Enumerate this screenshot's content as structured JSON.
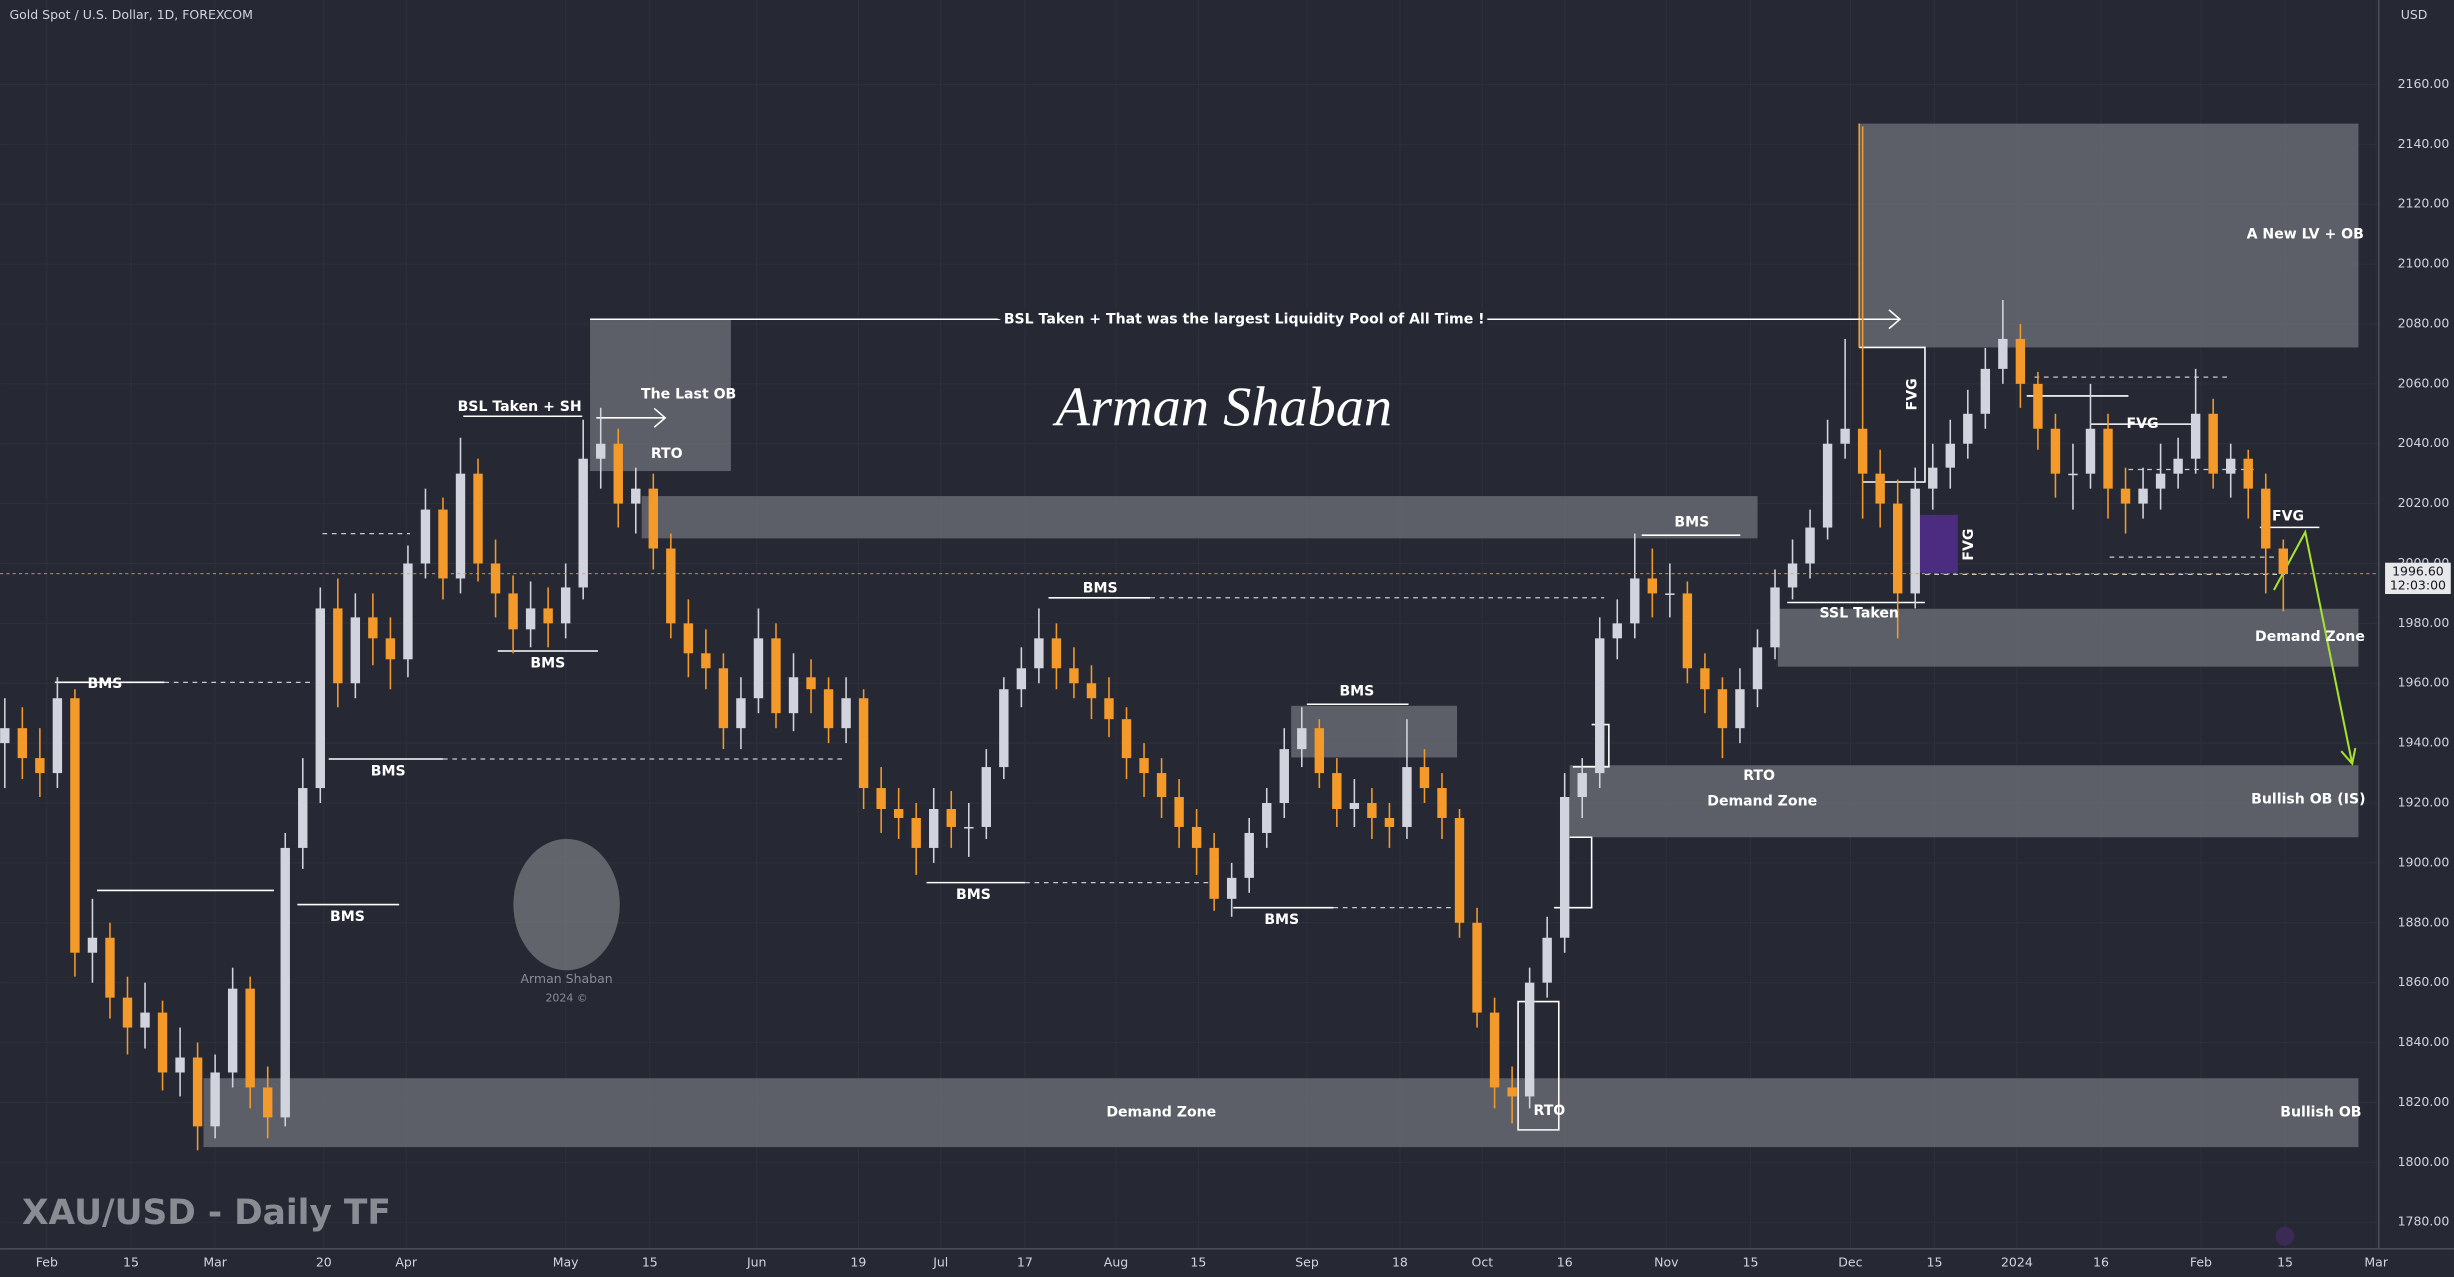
{
  "chart_data": {
    "type": "candlestick",
    "title": "Gold Spot / U.S. Dollar, 1D, FOREXCOM",
    "currency": "USD",
    "watermark": "XAU/USD - Daily TF",
    "signature": "Arman Shaban",
    "logo_name": "Arman Shaban",
    "logo_year": "2024 ©",
    "up_color": "#d1d4dc",
    "down_color": "#f39a2b",
    "xlim": [
      -0.27,
      135.45
    ],
    "xticks": [
      {
        "value": 2.4,
        "label": "Feb"
      },
      {
        "value": 7.2,
        "label": "15"
      },
      {
        "value": 12,
        "label": "Mar"
      },
      {
        "value": 18.2,
        "label": "20"
      },
      {
        "value": 22.9,
        "label": "Apr"
      },
      {
        "value": 32,
        "label": "May"
      },
      {
        "value": 36.8,
        "label": "15"
      },
      {
        "value": 42.9,
        "label": "Jun"
      },
      {
        "value": 48.7,
        "label": "19"
      },
      {
        "value": 53.4,
        "label": "Jul"
      },
      {
        "value": 58.2,
        "label": "17"
      },
      {
        "value": 63.4,
        "label": "Aug"
      },
      {
        "value": 68.1,
        "label": "15"
      },
      {
        "value": 74.3,
        "label": "Sep"
      },
      {
        "value": 79.6,
        "label": "18"
      },
      {
        "value": 84.3,
        "label": "Oct"
      },
      {
        "value": 89,
        "label": "16"
      },
      {
        "value": 94.8,
        "label": "Nov"
      },
      {
        "value": 99.6,
        "label": "15"
      },
      {
        "value": 105.3,
        "label": "Dec"
      },
      {
        "value": 110.1,
        "label": "15"
      },
      {
        "value": 114.8,
        "label": "2024"
      },
      {
        "value": 119.6,
        "label": "16"
      },
      {
        "value": 125.3,
        "label": "Feb"
      },
      {
        "value": 130.1,
        "label": "15"
      },
      {
        "value": 135.3,
        "label": "Mar"
      }
    ],
    "ylim": [
      1771.1,
      2188.2
    ],
    "yticks": [
      {
        "value": 1780,
        "label": "1780.00"
      },
      {
        "value": 1800,
        "label": "1800.00"
      },
      {
        "value": 1820,
        "label": "1820.00"
      },
      {
        "value": 1840,
        "label": "1840.00"
      },
      {
        "value": 1860,
        "label": "1860.00"
      },
      {
        "value": 1880,
        "label": "1880.00"
      },
      {
        "value": 1900,
        "label": "1900.00"
      },
      {
        "value": 1920,
        "label": "1920.00"
      },
      {
        "value": 1940,
        "label": "1940.00"
      },
      {
        "value": 1960,
        "label": "1960.00"
      },
      {
        "value": 1980,
        "label": "1980.00"
      },
      {
        "value": 2000,
        "label": "2000.00"
      },
      {
        "value": 2020,
        "label": "2020.00"
      },
      {
        "value": 2040,
        "label": "2040.00"
      },
      {
        "value": 2060,
        "label": "2060.00"
      },
      {
        "value": 2080,
        "label": "2080.00"
      },
      {
        "value": 2100,
        "label": "2100.00"
      },
      {
        "value": 2120,
        "label": "2120.00"
      },
      {
        "value": 2140,
        "label": "2140.00"
      },
      {
        "value": 2160,
        "label": "2160.00"
      }
    ],
    "last_price": {
      "value": 1996.6,
      "label": "1996.60"
    },
    "countdown": "12:03:00",
    "candles": [
      [
        1940,
        1955,
        1925,
        1945
      ],
      [
        1945,
        1952,
        1928,
        1935
      ],
      [
        1935,
        1945,
        1922,
        1930
      ],
      [
        1930,
        1962,
        1925,
        1955
      ],
      [
        1955,
        1958,
        1862,
        1870
      ],
      [
        1870,
        1888,
        1860,
        1875
      ],
      [
        1875,
        1880,
        1848,
        1855
      ],
      [
        1855,
        1862,
        1836,
        1845
      ],
      [
        1845,
        1860,
        1838,
        1850
      ],
      [
        1850,
        1854,
        1824,
        1830
      ],
      [
        1830,
        1845,
        1822,
        1835
      ],
      [
        1835,
        1840,
        1804,
        1812
      ],
      [
        1812,
        1836,
        1808,
        1830
      ],
      [
        1830,
        1865,
        1825,
        1858
      ],
      [
        1858,
        1862,
        1818,
        1825
      ],
      [
        1825,
        1832,
        1808,
        1815
      ],
      [
        1815,
        1910,
        1812,
        1905
      ],
      [
        1905,
        1935,
        1898,
        1925
      ],
      [
        1925,
        1992,
        1920,
        1985
      ],
      [
        1985,
        1995,
        1952,
        1960
      ],
      [
        1960,
        1990,
        1955,
        1982
      ],
      [
        1982,
        1990,
        1966,
        1975
      ],
      [
        1975,
        1982,
        1958,
        1968
      ],
      [
        1968,
        2006,
        1962,
        2000
      ],
      [
        2000,
        2025,
        1995,
        2018
      ],
      [
        2018,
        2022,
        1988,
        1995
      ],
      [
        1995,
        2042,
        1990,
        2030
      ],
      [
        2030,
        2035,
        1994,
        2000
      ],
      [
        2000,
        2008,
        1982,
        1990
      ],
      [
        1990,
        1996,
        1970,
        1978
      ],
      [
        1978,
        1994,
        1972,
        1985
      ],
      [
        1985,
        1992,
        1972,
        1980
      ],
      [
        1980,
        2000,
        1975,
        1992
      ],
      [
        1992,
        2048,
        1988,
        2035
      ],
      [
        2035,
        2052,
        2025,
        2040
      ],
      [
        2040,
        2045,
        2012,
        2020
      ],
      [
        2020,
        2032,
        2010,
        2025
      ],
      [
        2025,
        2030,
        1998,
        2005
      ],
      [
        2005,
        2010,
        1975,
        1980
      ],
      [
        1980,
        1988,
        1962,
        1970
      ],
      [
        1970,
        1978,
        1958,
        1965
      ],
      [
        1965,
        1970,
        1938,
        1945
      ],
      [
        1945,
        1962,
        1938,
        1955
      ],
      [
        1955,
        1985,
        1950,
        1975
      ],
      [
        1975,
        1980,
        1945,
        1950
      ],
      [
        1950,
        1970,
        1944,
        1962
      ],
      [
        1962,
        1968,
        1950,
        1958
      ],
      [
        1958,
        1962,
        1940,
        1945
      ],
      [
        1945,
        1962,
        1940,
        1955
      ],
      [
        1955,
        1958,
        1918,
        1925
      ],
      [
        1925,
        1932,
        1910,
        1918
      ],
      [
        1918,
        1925,
        1908,
        1915
      ],
      [
        1915,
        1920,
        1896,
        1905
      ],
      [
        1905,
        1925,
        1900,
        1918
      ],
      [
        1918,
        1924,
        1905,
        1912
      ],
      [
        1912,
        1920,
        1902,
        1912
      ],
      [
        1912,
        1938,
        1908,
        1932
      ],
      [
        1932,
        1962,
        1928,
        1958
      ],
      [
        1958,
        1972,
        1952,
        1965
      ],
      [
        1965,
        1985,
        1960,
        1975
      ],
      [
        1975,
        1980,
        1958,
        1965
      ],
      [
        1965,
        1972,
        1955,
        1960
      ],
      [
        1960,
        1966,
        1948,
        1955
      ],
      [
        1955,
        1962,
        1942,
        1948
      ],
      [
        1948,
        1952,
        1928,
        1935
      ],
      [
        1935,
        1940,
        1922,
        1930
      ],
      [
        1930,
        1935,
        1915,
        1922
      ],
      [
        1922,
        1928,
        1905,
        1912
      ],
      [
        1912,
        1918,
        1896,
        1905
      ],
      [
        1905,
        1910,
        1884,
        1888
      ],
      [
        1888,
        1900,
        1882,
        1895
      ],
      [
        1895,
        1915,
        1890,
        1910
      ],
      [
        1910,
        1925,
        1905,
        1920
      ],
      [
        1920,
        1945,
        1915,
        1938
      ],
      [
        1938,
        1952,
        1932,
        1945
      ],
      [
        1945,
        1948,
        1925,
        1930
      ],
      [
        1930,
        1935,
        1912,
        1918
      ],
      [
        1918,
        1928,
        1912,
        1920
      ],
      [
        1920,
        1925,
        1908,
        1915
      ],
      [
        1915,
        1920,
        1905,
        1912
      ],
      [
        1912,
        1948,
        1908,
        1932
      ],
      [
        1932,
        1938,
        1920,
        1925
      ],
      [
        1925,
        1930,
        1908,
        1915
      ],
      [
        1915,
        1918,
        1875,
        1880
      ],
      [
        1880,
        1885,
        1845,
        1850
      ],
      [
        1850,
        1855,
        1818,
        1825
      ],
      [
        1825,
        1832,
        1813,
        1822
      ],
      [
        1822,
        1865,
        1818,
        1860
      ],
      [
        1860,
        1882,
        1855,
        1875
      ],
      [
        1875,
        1930,
        1870,
        1922
      ],
      [
        1922,
        1935,
        1915,
        1930
      ],
      [
        1930,
        1982,
        1925,
        1975
      ],
      [
        1975,
        1988,
        1968,
        1980
      ],
      [
        1980,
        2010,
        1975,
        1995
      ],
      [
        1995,
        2005,
        1982,
        1990
      ],
      [
        1990,
        2000,
        1982,
        1990
      ],
      [
        1990,
        1994,
        1960,
        1965
      ],
      [
        1965,
        1970,
        1950,
        1958
      ],
      [
        1958,
        1962,
        1935,
        1945
      ],
      [
        1945,
        1965,
        1940,
        1958
      ],
      [
        1958,
        1978,
        1952,
        1972
      ],
      [
        1972,
        1998,
        1968,
        1992
      ],
      [
        1992,
        2008,
        1988,
        2000
      ],
      [
        2000,
        2018,
        1995,
        2012
      ],
      [
        2012,
        2048,
        2008,
        2040
      ],
      [
        2040,
        2075,
        2035,
        2045
      ],
      [
        2045,
        2146,
        2015,
        2030
      ],
      [
        2030,
        2038,
        2012,
        2020
      ],
      [
        2020,
        2028,
        1975,
        1990
      ],
      [
        1990,
        2032,
        1985,
        2025
      ],
      [
        2025,
        2040,
        2018,
        2032
      ],
      [
        2032,
        2048,
        2025,
        2040
      ],
      [
        2040,
        2058,
        2035,
        2050
      ],
      [
        2050,
        2072,
        2045,
        2065
      ],
      [
        2065,
        2088,
        2060,
        2075
      ],
      [
        2075,
        2080,
        2052,
        2060
      ],
      [
        2060,
        2064,
        2038,
        2045
      ],
      [
        2045,
        2050,
        2022,
        2030
      ],
      [
        2030,
        2040,
        2018,
        2030
      ],
      [
        2030,
        2060,
        2025,
        2045
      ],
      [
        2045,
        2050,
        2015,
        2025
      ],
      [
        2025,
        2032,
        2010,
        2020
      ],
      [
        2020,
        2032,
        2015,
        2025
      ],
      [
        2025,
        2040,
        2018,
        2030
      ],
      [
        2030,
        2042,
        2025,
        2035
      ],
      [
        2035,
        2065,
        2030,
        2050
      ],
      [
        2050,
        2055,
        2025,
        2030
      ],
      [
        2030,
        2040,
        2022,
        2035
      ],
      [
        2035,
        2038,
        2015,
        2025
      ],
      [
        2025,
        2030,
        1990,
        2005
      ],
      [
        2005,
        2008,
        1984,
        1996.6
      ]
    ],
    "annotations": [
      "BMS",
      "BMS",
      "BMS",
      "BSL Taken + SH",
      "The Last OB",
      "RTO",
      "BMS",
      "BSL Taken + That was the largest Liquidity Pool of All Time !",
      "BMS",
      "BMS",
      "BMS",
      "BMS",
      "Demand Zone",
      "RTO",
      "BMS",
      "RTO",
      "Demand Zone",
      "SSL Taken",
      "FVG",
      "FVG",
      "FVG",
      "FVG",
      "A New LV + OB",
      "Demand Zone",
      "Bullish OB (IS)",
      "Bullish OB"
    ]
  }
}
